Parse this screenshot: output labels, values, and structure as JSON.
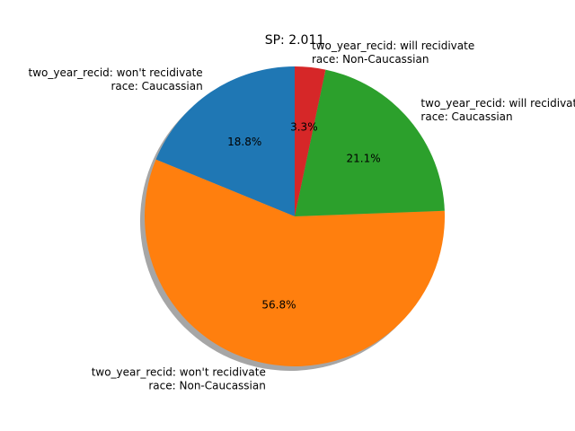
{
  "chart_data": {
    "type": "pie",
    "title": "SP: 2.011",
    "startangle_deg": 90,
    "direction": "counterclockwise",
    "shadow": true,
    "slices": [
      {
        "label_line1": "two_year_recid: won't recidivate",
        "label_line2": "race: Caucassian",
        "value": 18.8,
        "pct_label": "18.8%",
        "color": "#1f77b4"
      },
      {
        "label_line1": "two_year_recid: won't recidivate",
        "label_line2": "race: Non-Caucassian",
        "value": 56.8,
        "pct_label": "56.8%",
        "color": "#ff7f0e"
      },
      {
        "label_line1": "two_year_recid: will recidivate",
        "label_line2": "race: Caucassian",
        "value": 21.1,
        "pct_label": "21.1%",
        "color": "#2ca02c"
      },
      {
        "label_line1": "two_year_recid: will recidivate",
        "label_line2": "race: Non-Caucassian",
        "value": 3.3,
        "pct_label": "3.3%",
        "color": "#d62728"
      }
    ]
  }
}
